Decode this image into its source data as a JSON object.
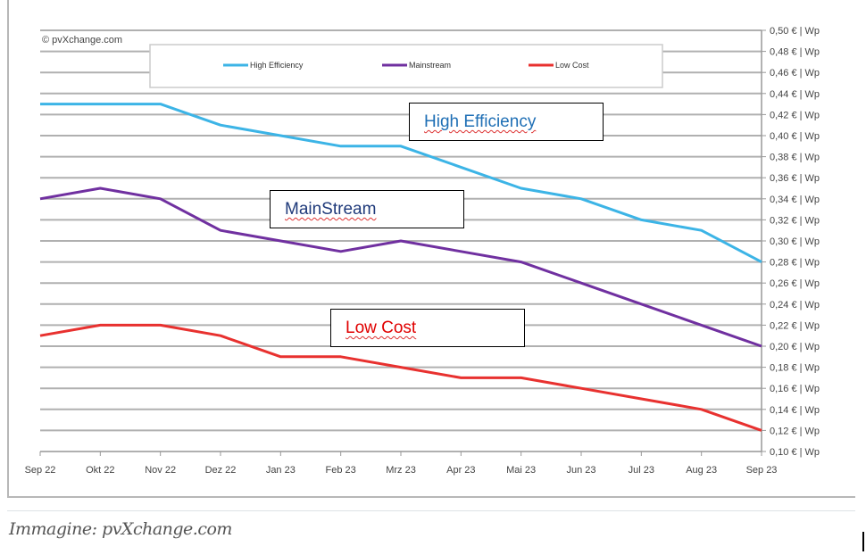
{
  "chart_data": {
    "type": "line",
    "watermark": "© pvXchange.com",
    "categories": [
      "Sep 22",
      "Okt 22",
      "Nov 22",
      "Dez 22",
      "Jan 23",
      "Feb 23",
      "Mrz 23",
      "Apr 23",
      "Mai 23",
      "Jun 23",
      "Jul 23",
      "Aug 23",
      "Sep 23"
    ],
    "series": [
      {
        "name": "High Efficiency",
        "color": "#3cb4e6",
        "values": [
          0.43,
          0.43,
          0.43,
          0.41,
          0.4,
          0.39,
          0.39,
          0.37,
          0.35,
          0.34,
          0.32,
          0.31,
          0.28
        ]
      },
      {
        "name": "Mainstream",
        "color": "#7030a0",
        "values": [
          0.34,
          0.35,
          0.34,
          0.31,
          0.3,
          0.29,
          0.3,
          0.29,
          0.28,
          0.26,
          0.24,
          0.22,
          0.2
        ]
      },
      {
        "name": "Low Cost",
        "color": "#e8312f",
        "values": [
          0.21,
          0.22,
          0.22,
          0.21,
          0.19,
          0.19,
          0.18,
          0.17,
          0.17,
          0.16,
          0.15,
          0.14,
          0.12
        ]
      }
    ],
    "yticks": [
      "0,10 € | Wp",
      "0,12 € | Wp",
      "0,14 € | Wp",
      "0,16 € | Wp",
      "0,18 € | Wp",
      "0,20 € | Wp",
      "0,22 € | Wp",
      "0,24 € | Wp",
      "0,26 € | Wp",
      "0,28 € | Wp",
      "0,30 € | Wp",
      "0,32 € | Wp",
      "0,34 € | Wp",
      "0,36 € | Wp",
      "0,38 € | Wp",
      "0,40 € | Wp",
      "0,42 € | Wp",
      "0,44 € | Wp",
      "0,46 € | Wp",
      "0,48 € | Wp",
      "0,50 € | Wp"
    ],
    "ylim": [
      0.1,
      0.5
    ],
    "yaxis_position": "right",
    "grid": true,
    "legend_placement": "top",
    "annotations": [
      {
        "text": "High Efficiency",
        "color": "#1f6fb5"
      },
      {
        "text": "MainStream",
        "color": "#1f3a7a"
      },
      {
        "text": "Low Cost",
        "color": "#e00000"
      }
    ]
  },
  "caption": "Immagine: pvXchange.com"
}
